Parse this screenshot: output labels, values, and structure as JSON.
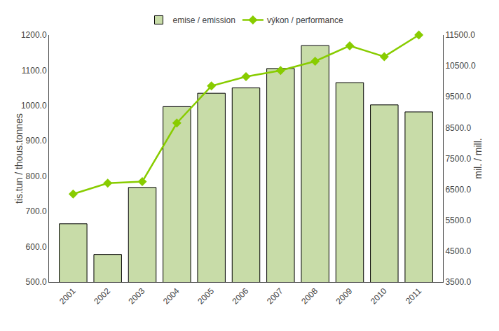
{
  "chart_data": {
    "type": "bar",
    "categories": [
      "2001",
      "2002",
      "2003",
      "2004",
      "2005",
      "2006",
      "2007",
      "2008",
      "2009",
      "2010",
      "2011"
    ],
    "series": [
      {
        "name": "emise / emission",
        "type": "bar",
        "color": "#c8dca8",
        "values": [
          665,
          578,
          768,
          997,
          1035,
          1050,
          1105,
          1170,
          1065,
          1002,
          982
        ]
      },
      {
        "name": "výkon / performance",
        "type": "line",
        "axis": "y2",
        "color": "#88CC00",
        "marker": "diamond",
        "values": [
          6350,
          6700,
          6750,
          8650,
          9850,
          10150,
          10350,
          10650,
          11150,
          10800,
          11500
        ]
      }
    ],
    "ylabel": "tis.tun / thous.tonnes",
    "y2label": "mil. / mill.",
    "ylim": [
      500.0,
      1200.0
    ],
    "yticks": [
      {
        "value": 500.0,
        "label": "500.0"
      },
      {
        "value": 600.0,
        "label": "600.0"
      },
      {
        "value": 700.0,
        "label": "700.0"
      },
      {
        "value": 800.0,
        "label": "800.0"
      },
      {
        "value": 900.0,
        "label": "900.0"
      },
      {
        "value": 1000.0,
        "label": "1000.0"
      },
      {
        "value": 1100.0,
        "label": "1100.0"
      },
      {
        "value": 1200.0,
        "label": "1200.0"
      }
    ],
    "y2lim": [
      3500.0,
      11500.0
    ],
    "y2ticks": [
      {
        "value": 3500.0,
        "label": "3500.0"
      },
      {
        "value": 4500.0,
        "label": "4500.0"
      },
      {
        "value": 5500.0,
        "label": "5500.0"
      },
      {
        "value": 6500.0,
        "label": "6500.0"
      },
      {
        "value": 7500.0,
        "label": "7500.0"
      },
      {
        "value": 8500.0,
        "label": "8500.0"
      },
      {
        "value": 9500.0,
        "label": "9500.0"
      },
      {
        "value": 10500.0,
        "label": "10500.0"
      },
      {
        "value": 11500.0,
        "label": "11500.0"
      }
    ],
    "grid": false,
    "legend": "top"
  }
}
